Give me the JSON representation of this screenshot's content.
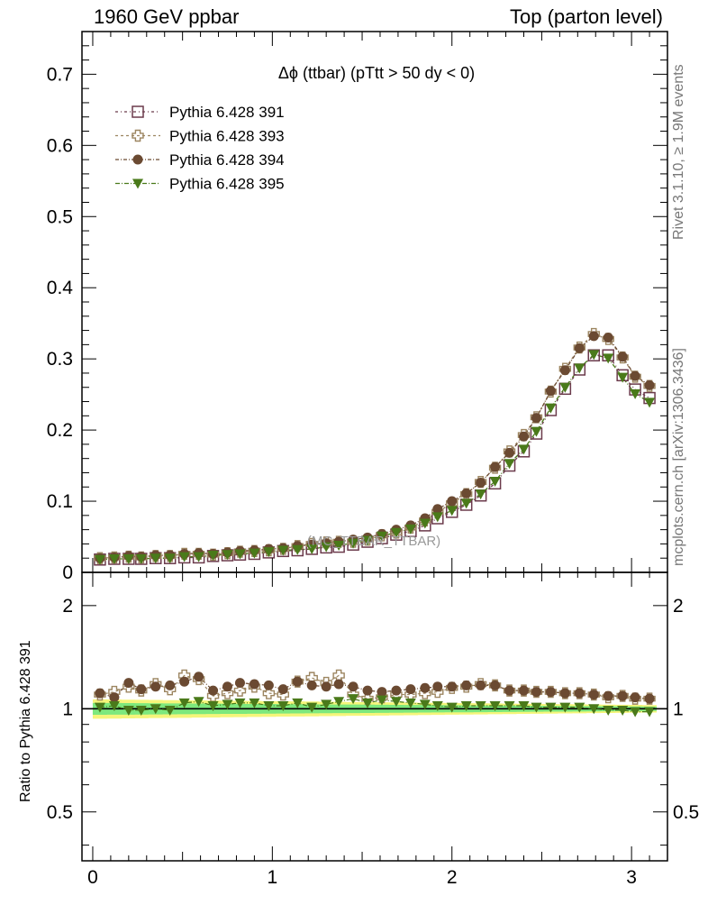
{
  "header": {
    "left": "1960 GeV ppbar",
    "right": "Top (parton level)"
  },
  "side_labels": {
    "rivet": "Rivet 3.1.10, ≥ 1.9M events",
    "mcplots": "mcplots.cern.ch [arXiv:1306.3436]"
  },
  "watermark": "(MC_TTBAR_TTBAR)",
  "chart_data": [
    {
      "type": "scatter",
      "title": "Δϕ (ttbar) (pTtt > 50 dy < 0)",
      "xlim": [
        -0.06,
        3.2
      ],
      "ylim": [
        0,
        0.76
      ],
      "yticks": [
        0,
        0.1,
        0.2,
        0.3,
        0.4,
        0.5,
        0.6,
        0.7
      ],
      "yticklabels": [
        "0",
        "0.1",
        "0.2",
        "0.3",
        "0.4",
        "0.5",
        "0.6",
        "0.7"
      ],
      "legend_position": "top-left",
      "x": [
        0.04,
        0.12,
        0.2,
        0.27,
        0.35,
        0.43,
        0.51,
        0.59,
        0.67,
        0.75,
        0.82,
        0.9,
        0.98,
        1.06,
        1.14,
        1.22,
        1.3,
        1.37,
        1.45,
        1.53,
        1.61,
        1.69,
        1.77,
        1.85,
        1.92,
        2.0,
        2.08,
        2.16,
        2.24,
        2.32,
        2.4,
        2.47,
        2.55,
        2.63,
        2.71,
        2.79,
        2.87,
        2.95,
        3.02,
        3.1
      ],
      "series": [
        {
          "name": "Pythia 6.428 391",
          "color": "#6b3a4b",
          "marker": "open-square",
          "values": [
            0.018,
            0.019,
            0.019,
            0.019,
            0.02,
            0.02,
            0.021,
            0.021,
            0.023,
            0.024,
            0.025,
            0.026,
            0.028,
            0.03,
            0.031,
            0.033,
            0.035,
            0.036,
            0.039,
            0.043,
            0.048,
            0.053,
            0.058,
            0.066,
            0.076,
            0.085,
            0.095,
            0.108,
            0.125,
            0.15,
            0.17,
            0.195,
            0.228,
            0.258,
            0.285,
            0.305,
            0.305,
            0.277,
            0.257,
            0.245
          ]
        },
        {
          "name": "Pythia 6.428 393",
          "color": "#9c8560",
          "marker": "open-cross",
          "values": [
            0.02,
            0.021,
            0.022,
            0.021,
            0.023,
            0.023,
            0.026,
            0.026,
            0.025,
            0.027,
            0.029,
            0.03,
            0.031,
            0.033,
            0.037,
            0.04,
            0.042,
            0.043,
            0.043,
            0.046,
            0.052,
            0.056,
            0.063,
            0.073,
            0.085,
            0.097,
            0.11,
            0.127,
            0.147,
            0.17,
            0.193,
            0.218,
            0.254,
            0.286,
            0.316,
            0.335,
            0.328,
            0.302,
            0.275,
            0.262
          ]
        },
        {
          "name": "Pythia 6.428 394",
          "color": "#6b4a32",
          "marker": "filled-circle",
          "values": [
            0.02,
            0.021,
            0.023,
            0.022,
            0.024,
            0.024,
            0.026,
            0.027,
            0.026,
            0.028,
            0.03,
            0.031,
            0.033,
            0.034,
            0.037,
            0.039,
            0.041,
            0.043,
            0.046,
            0.049,
            0.054,
            0.06,
            0.066,
            0.076,
            0.089,
            0.1,
            0.111,
            0.126,
            0.148,
            0.168,
            0.191,
            0.217,
            0.255,
            0.284,
            0.315,
            0.332,
            0.33,
            0.303,
            0.276,
            0.263
          ]
        },
        {
          "name": "Pythia 6.428 395",
          "color": "#4a7a1a",
          "marker": "filled-triangle-down",
          "values": [
            0.018,
            0.019,
            0.019,
            0.019,
            0.02,
            0.02,
            0.022,
            0.022,
            0.024,
            0.025,
            0.026,
            0.027,
            0.029,
            0.031,
            0.032,
            0.033,
            0.036,
            0.038,
            0.041,
            0.045,
            0.051,
            0.056,
            0.061,
            0.069,
            0.078,
            0.087,
            0.097,
            0.11,
            0.128,
            0.153,
            0.173,
            0.198,
            0.231,
            0.26,
            0.287,
            0.306,
            0.301,
            0.274,
            0.251,
            0.239
          ]
        }
      ]
    },
    {
      "type": "scatter",
      "ylabel": "Ratio to Pythia 6.428 391",
      "xlim": [
        -0.06,
        3.2
      ],
      "ylim": [
        0.36,
        2.5
      ],
      "log_y": true,
      "xticks": [
        0,
        1,
        2,
        3
      ],
      "xticklabels": [
        "0",
        "1",
        "2",
        "3"
      ],
      "yticks": [
        0.5,
        1,
        2
      ],
      "yticklabels": [
        "0.5",
        "1",
        "2"
      ],
      "band_colors": {
        "inner": "#7de87d",
        "outer": "#f5f57a"
      },
      "x": [
        0.04,
        0.12,
        0.2,
        0.27,
        0.35,
        0.43,
        0.51,
        0.59,
        0.67,
        0.75,
        0.82,
        0.9,
        0.98,
        1.06,
        1.14,
        1.22,
        1.3,
        1.37,
        1.45,
        1.53,
        1.61,
        1.69,
        1.77,
        1.85,
        1.92,
        2.0,
        2.08,
        2.16,
        2.24,
        2.32,
        2.4,
        2.47,
        2.55,
        2.63,
        2.71,
        2.79,
        2.87,
        2.95,
        3.02,
        3.1
      ],
      "series": [
        {
          "name": "Pythia 6.428 393",
          "color": "#9c8560",
          "marker": "open-cross",
          "values": [
            1.1,
            1.12,
            1.16,
            1.13,
            1.18,
            1.14,
            1.25,
            1.22,
            1.09,
            1.11,
            1.13,
            1.16,
            1.11,
            1.1,
            1.2,
            1.23,
            1.19,
            1.25,
            1.1,
            1.07,
            1.08,
            1.1,
            1.1,
            1.11,
            1.12,
            1.15,
            1.16,
            1.18,
            1.17,
            1.13,
            1.13,
            1.12,
            1.12,
            1.11,
            1.11,
            1.1,
            1.08,
            1.09,
            1.07,
            1.07
          ]
        },
        {
          "name": "Pythia 6.428 394",
          "color": "#6b4a32",
          "marker": "filled-circle",
          "values": [
            1.11,
            1.08,
            1.19,
            1.14,
            1.16,
            1.17,
            1.2,
            1.24,
            1.13,
            1.16,
            1.19,
            1.18,
            1.17,
            1.14,
            1.2,
            1.17,
            1.16,
            1.18,
            1.16,
            1.13,
            1.12,
            1.13,
            1.14,
            1.15,
            1.16,
            1.16,
            1.17,
            1.17,
            1.17,
            1.13,
            1.13,
            1.12,
            1.12,
            1.11,
            1.11,
            1.1,
            1.09,
            1.09,
            1.08,
            1.07
          ]
        },
        {
          "name": "Pythia 6.428 395",
          "color": "#4a7a1a",
          "marker": "filled-triangle-down",
          "values": [
            1.01,
            1.02,
            0.99,
            0.99,
            1.0,
            0.99,
            1.04,
            1.05,
            1.02,
            1.03,
            1.04,
            1.04,
            1.02,
            1.02,
            1.04,
            1.01,
            1.03,
            1.05,
            1.07,
            1.04,
            1.06,
            1.05,
            1.04,
            1.03,
            1.02,
            1.01,
            1.02,
            1.02,
            1.02,
            1.02,
            1.02,
            1.01,
            1.01,
            1.01,
            1.01,
            1.0,
            0.99,
            0.99,
            0.98,
            0.98
          ]
        }
      ]
    }
  ]
}
